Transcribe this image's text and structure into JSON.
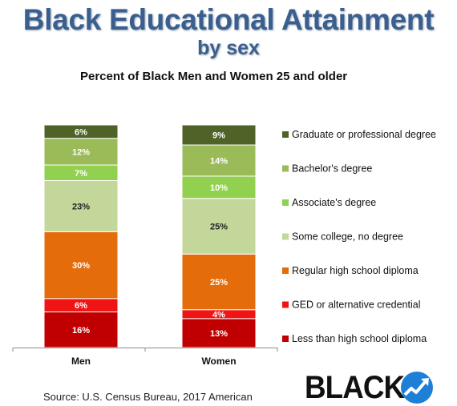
{
  "header": {
    "title": "Black Educational Attainment",
    "subtitle": "by sex",
    "caption": "Percent of Black Men and Women 25 and older"
  },
  "source": "Source: U.S. Census Bureau, 2017 American",
  "logo": {
    "text": "BLACK",
    "icon": "rising-arrow-icon"
  },
  "chart_data": {
    "type": "bar",
    "stacked": true,
    "categories": [
      "Men",
      "Women"
    ],
    "ylim": [
      0,
      100
    ],
    "legend_position": "right",
    "grid": false,
    "series": [
      {
        "name": "Less than high school diploma",
        "color": "#c00000",
        "values": [
          16,
          13
        ],
        "labels": [
          "16%",
          "13%"
        ]
      },
      {
        "name": "GED or alternative credential",
        "color": "#f01515",
        "values": [
          6,
          4
        ],
        "labels": [
          "6%",
          "4%"
        ]
      },
      {
        "name": "Regular high school diploma",
        "color": "#e46c0a",
        "values": [
          30,
          25
        ],
        "labels": [
          "30%",
          "25%"
        ]
      },
      {
        "name": "Some college, no degree",
        "color": "#c4d79b",
        "values": [
          23,
          25
        ],
        "labels": [
          "23%",
          "25%"
        ]
      },
      {
        "name": "Associate's degree",
        "color": "#92d050",
        "values": [
          7,
          10
        ],
        "labels": [
          "7%",
          "10%"
        ]
      },
      {
        "name": "Bachelor's degree",
        "color": "#9bbb59",
        "values": [
          12,
          14
        ],
        "labels": [
          "12%",
          "14%"
        ]
      },
      {
        "name": "Graduate or professional degree",
        "color": "#4f6228",
        "values": [
          6,
          9
        ],
        "labels": [
          "6%",
          "9%"
        ]
      }
    ]
  }
}
